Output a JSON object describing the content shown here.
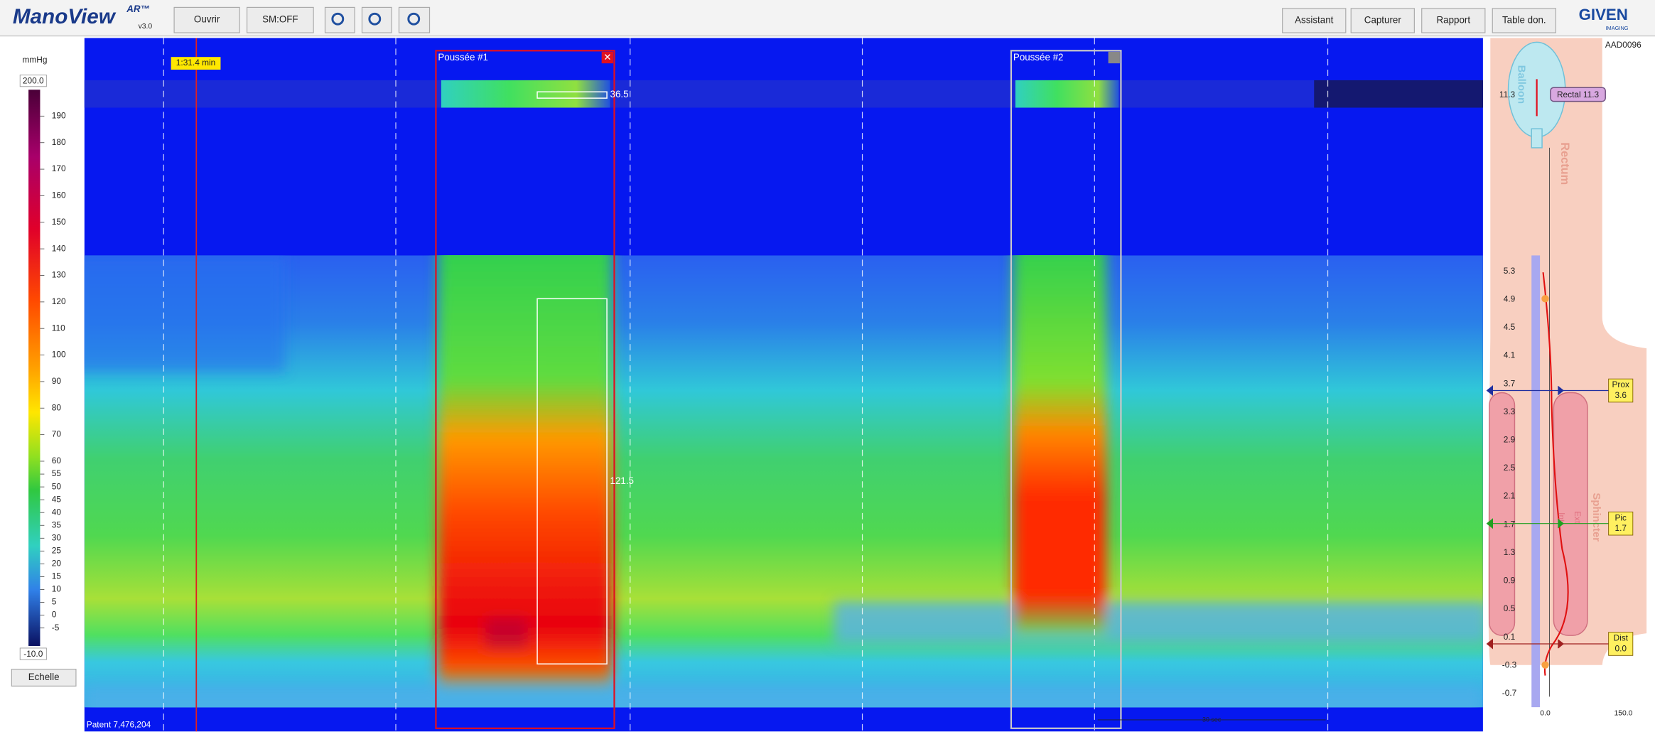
{
  "toolbar": {
    "logo": "ManoView",
    "logo_sup": "AR™",
    "version": "v3.0",
    "buttons_left": [
      "Ouvrir",
      "SM:OFF"
    ],
    "buttons_right": [
      "Assistant",
      "Capturer",
      "Rapport",
      "Table don."
    ],
    "brand": "GIVEN",
    "brand_sub": "IMAGING"
  },
  "scale": {
    "unit": "mmHg",
    "max": "200.0",
    "min": "-10.0",
    "ticks": [
      "190",
      "180",
      "170",
      "160",
      "150",
      "140",
      "130",
      "120",
      "110",
      "100",
      "90",
      "80",
      "70",
      "60",
      "55",
      "50",
      "45",
      "40",
      "35",
      "30",
      "25",
      "20",
      "15",
      "10",
      "5",
      "0",
      "-5"
    ],
    "button": "Echelle"
  },
  "plot": {
    "time_marker": "1:31.4 min",
    "regions": [
      "Poussée #1",
      "Poussée #2"
    ],
    "values": [
      "36.5",
      "121.5"
    ],
    "patent": "Patent 7,476,204",
    "time_scale": "30 sec"
  },
  "anatomy": {
    "id": "AAD0096",
    "rectal_value": "11.3",
    "rectal_tag": "Rectal 11.3",
    "balloon": "Balloon",
    "rectum": "Rectum",
    "sphincter": "Sphincter",
    "int": "Int",
    "ext": "Ext",
    "positions": [
      "5.3",
      "4.9",
      "4.5",
      "4.1",
      "3.7",
      "3.3",
      "2.9",
      "2.5",
      "2.1",
      "1.7",
      "1.3",
      "0.9",
      "0.5",
      "0.1",
      "-0.3",
      "-0.7"
    ],
    "markers": [
      {
        "name": "Prox",
        "value": "3.6"
      },
      {
        "name": "Pic",
        "value": "1.7"
      },
      {
        "name": "Dist",
        "value": "0.0"
      }
    ],
    "x_axis": [
      "0.0",
      "150.0"
    ]
  }
}
